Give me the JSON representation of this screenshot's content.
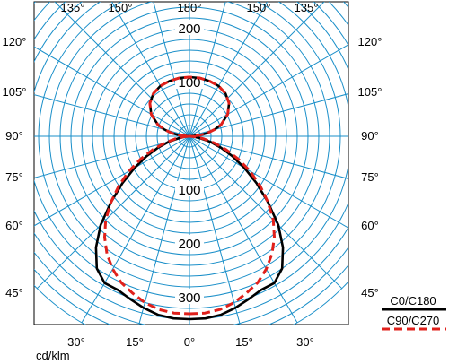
{
  "chart_data": {
    "type": "polar",
    "unit_label": "cd/klm",
    "radial_ticks": [
      "100",
      "200",
      "300"
    ],
    "radial_ticks_upper": [
      "100",
      "200"
    ],
    "angle_labels": {
      "top": [
        "135°",
        "150°",
        "180°",
        "150°",
        "135°"
      ],
      "left": [
        "120°",
        "105°",
        "90°",
        "75°",
        "60°",
        "45°"
      ],
      "right": [
        "120°",
        "105°",
        "90°",
        "75°",
        "60°",
        "45°"
      ],
      "bottom": [
        "30°",
        "15°",
        "0°",
        "15°",
        "30°"
      ]
    },
    "grid": true,
    "grid_color": "#1a8fc9",
    "legend_position": "bottom-right",
    "series": [
      {
        "name": "C0/C180",
        "color": "#000000",
        "style": "solid",
        "points": [
          [
            0,
            340
          ],
          [
            5,
            340
          ],
          [
            10,
            337
          ],
          [
            15,
            330
          ],
          [
            20,
            322
          ],
          [
            25,
            315
          ],
          [
            30,
            315
          ],
          [
            35,
            300
          ],
          [
            40,
            270
          ],
          [
            45,
            233
          ],
          [
            50,
            190
          ],
          [
            55,
            152
          ],
          [
            60,
            118
          ],
          [
            65,
            88
          ],
          [
            70,
            62
          ],
          [
            75,
            40
          ],
          [
            80,
            20
          ],
          [
            85,
            8
          ],
          [
            90,
            0
          ],
          [
            95,
            17
          ],
          [
            100,
            33
          ],
          [
            105,
            48
          ],
          [
            110,
            62
          ],
          [
            120,
            82
          ],
          [
            130,
            96
          ],
          [
            140,
            104
          ],
          [
            150,
            108
          ],
          [
            160,
            109
          ],
          [
            170,
            110
          ],
          [
            180,
            110
          ]
        ]
      },
      {
        "name": "C90/C270",
        "color": "#e0201b",
        "style": "dashed",
        "points": [
          [
            0,
            330
          ],
          [
            5,
            330
          ],
          [
            10,
            327
          ],
          [
            15,
            320
          ],
          [
            20,
            310
          ],
          [
            25,
            300
          ],
          [
            30,
            285
          ],
          [
            35,
            267
          ],
          [
            40,
            245
          ],
          [
            45,
            220
          ],
          [
            50,
            190
          ],
          [
            55,
            160
          ],
          [
            60,
            130
          ],
          [
            65,
            100
          ],
          [
            70,
            72
          ],
          [
            75,
            48
          ],
          [
            80,
            26
          ],
          [
            85,
            10
          ],
          [
            90,
            0
          ],
          [
            95,
            17
          ],
          [
            100,
            33
          ],
          [
            105,
            48
          ],
          [
            110,
            62
          ],
          [
            120,
            82
          ],
          [
            130,
            96
          ],
          [
            140,
            104
          ],
          [
            150,
            108
          ],
          [
            160,
            109
          ],
          [
            170,
            110
          ],
          [
            180,
            110
          ]
        ]
      }
    ]
  }
}
